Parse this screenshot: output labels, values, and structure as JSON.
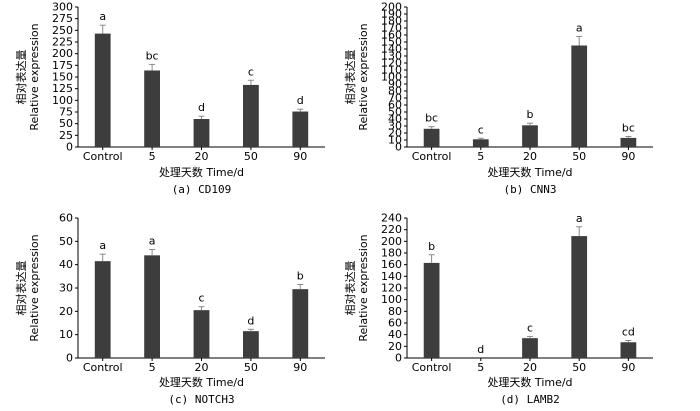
{
  "chart_data": [
    {
      "type": "bar",
      "caption": "(a)  CD109",
      "xlabel": "处理天数 Time/d",
      "ylabel": [
        "相对表达量",
        "Relative expression"
      ],
      "categories": [
        "Control",
        "5",
        "20",
        "50",
        "90"
      ],
      "values": [
        243,
        164,
        60,
        133,
        76
      ],
      "errors": [
        18,
        13,
        6,
        10,
        5
      ],
      "letters": [
        "a",
        "bc",
        "d",
        "c",
        "d"
      ],
      "ylim": [
        0,
        300
      ],
      "yticks": [
        "0",
        "25",
        "50",
        "75",
        "100",
        "125",
        "150",
        "175",
        "200",
        "225",
        "250",
        "275",
        "300"
      ],
      "color": "#3d3d3d"
    },
    {
      "type": "bar",
      "caption": "(b)  CNN3",
      "xlabel": "处理天数 Time/d",
      "ylabel": [
        "相对表达量",
        "Relative expression"
      ],
      "categories": [
        "Control",
        "5",
        "20",
        "50",
        "90"
      ],
      "values": [
        26,
        11,
        31,
        145,
        13
      ],
      "errors": [
        3,
        1.5,
        3,
        13,
        2
      ],
      "letters": [
        "bc",
        "c",
        "b",
        "a",
        "bc"
      ],
      "ylim": [
        0,
        200
      ],
      "yticks": [
        "0",
        "10",
        "20",
        "30",
        "40",
        "50",
        "60",
        "70",
        "80",
        "90",
        "100",
        "110",
        "120",
        "130",
        "140",
        "150",
        "160",
        "170",
        "180",
        "190",
        "200"
      ],
      "color": "#3d3d3d"
    },
    {
      "type": "bar",
      "caption": "(c)  NOTCH3",
      "xlabel": "处理天数 Time/d",
      "ylabel": [
        "相对表达量",
        "Relative expression"
      ],
      "categories": [
        "Control",
        "5",
        "20",
        "50",
        "90"
      ],
      "values": [
        41.5,
        44,
        20.5,
        11.5,
        29.5
      ],
      "errors": [
        3,
        2.5,
        1.5,
        0.8,
        2
      ],
      "letters": [
        "a",
        "a",
        "c",
        "d",
        "b"
      ],
      "ylim": [
        0,
        60
      ],
      "yticks": [
        "0",
        "10",
        "20",
        "30",
        "40",
        "50",
        "60"
      ],
      "color": "#3d3d3d"
    },
    {
      "type": "bar",
      "caption": "(d)  LAMB2",
      "xlabel": "处理天数 Time/d",
      "ylabel": [
        "相对表达量",
        "Relative expression"
      ],
      "categories": [
        "Control",
        "5",
        "20",
        "50",
        "90"
      ],
      "values": [
        163,
        0,
        34,
        209,
        27
      ],
      "errors": [
        14,
        0,
        3,
        16,
        3
      ],
      "letters": [
        "b",
        "d",
        "c",
        "a",
        "cd"
      ],
      "ylim": [
        0,
        240
      ],
      "yticks": [
        "0",
        "20",
        "40",
        "60",
        "80",
        "100",
        "120",
        "140",
        "160",
        "180",
        "200",
        "220",
        "240"
      ],
      "color": "#3d3d3d"
    }
  ]
}
